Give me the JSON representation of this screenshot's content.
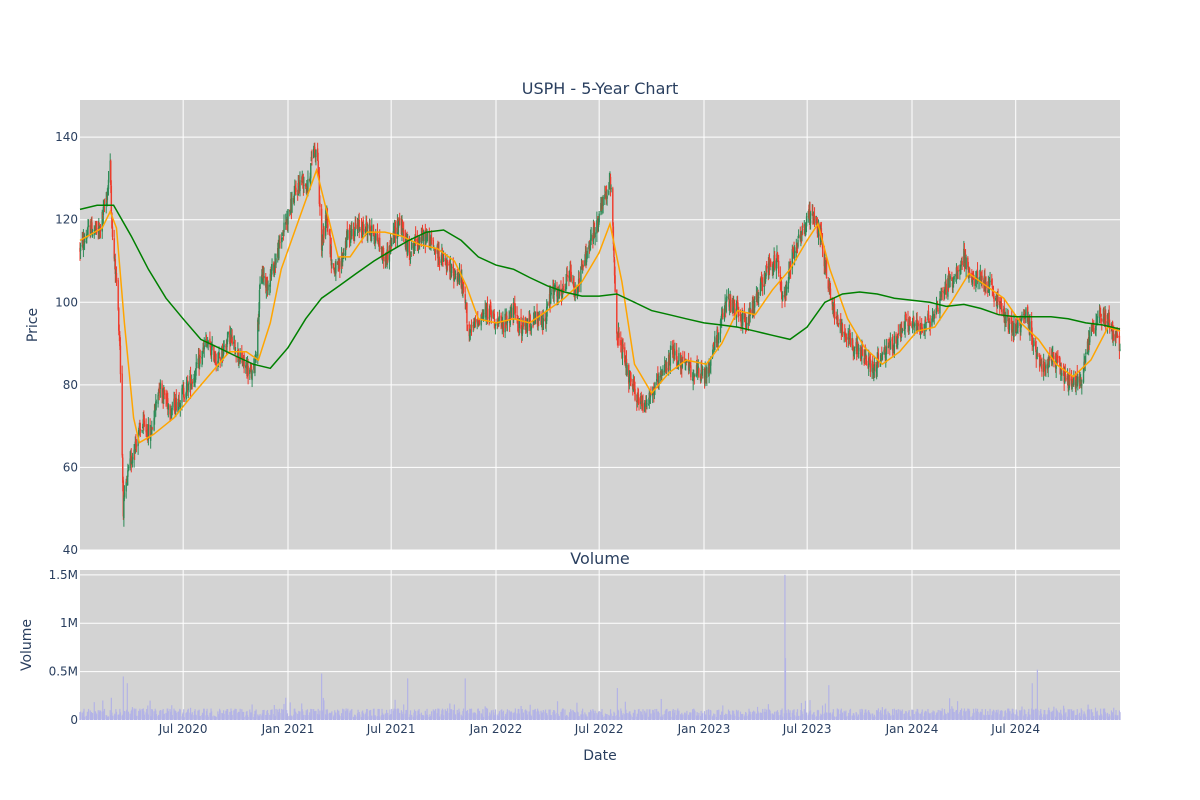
{
  "chart_data": {
    "type": "candlestick",
    "title": "USPH - 5-Year Chart",
    "price_panel": {
      "ylabel": "Price",
      "ylim": [
        40,
        149
      ],
      "y_ticks": [
        40,
        60,
        80,
        100,
        120,
        140
      ],
      "colors": {
        "up": "#2e8b57",
        "down": "#ef3b2c",
        "ma_short": "#ffa500",
        "ma_long": "#008000",
        "background": "#d3d3d3",
        "grid": "#ffffff"
      },
      "price_path": [
        [
          "2020-01-02",
          113
        ],
        [
          "2020-01-20",
          118
        ],
        [
          "2020-02-05",
          117
        ],
        [
          "2020-02-18",
          126
        ],
        [
          "2020-02-24",
          133
        ],
        [
          "2020-02-28",
          115
        ],
        [
          "2020-03-06",
          105
        ],
        [
          "2020-03-12",
          90
        ],
        [
          "2020-03-18",
          50
        ],
        [
          "2020-03-26",
          58
        ],
        [
          "2020-04-06",
          65
        ],
        [
          "2020-04-20",
          70
        ],
        [
          "2020-05-05",
          68
        ],
        [
          "2020-05-20",
          80
        ],
        [
          "2020-06-10",
          74
        ],
        [
          "2020-07-01",
          78
        ],
        [
          "2020-07-20",
          82
        ],
        [
          "2020-08-10",
          90
        ],
        [
          "2020-09-01",
          86
        ],
        [
          "2020-09-20",
          92
        ],
        [
          "2020-10-10",
          86
        ],
        [
          "2020-11-01",
          82
        ],
        [
          "2020-11-08",
          92
        ],
        [
          "2020-11-15",
          108
        ],
        [
          "2020-11-25",
          104
        ],
        [
          "2020-12-10",
          110
        ],
        [
          "2020-12-25",
          118
        ],
        [
          "2021-01-10",
          125
        ],
        [
          "2021-01-25",
          130
        ],
        [
          "2021-02-05",
          128
        ],
        [
          "2021-02-15",
          138
        ],
        [
          "2021-02-22",
          135
        ],
        [
          "2021-03-01",
          113
        ],
        [
          "2021-03-10",
          122
        ],
        [
          "2021-03-20",
          108
        ],
        [
          "2021-04-01",
          108
        ],
        [
          "2021-04-15",
          116
        ],
        [
          "2021-05-01",
          118
        ],
        [
          "2021-05-20",
          118
        ],
        [
          "2021-06-05",
          116
        ],
        [
          "2021-06-20",
          110
        ],
        [
          "2021-07-01",
          114
        ],
        [
          "2021-07-15",
          120
        ],
        [
          "2021-08-01",
          112
        ],
        [
          "2021-08-15",
          115
        ],
        [
          "2021-09-01",
          116
        ],
        [
          "2021-09-20",
          112
        ],
        [
          "2021-10-10",
          108
        ],
        [
          "2021-10-30",
          106
        ],
        [
          "2021-11-08",
          100
        ],
        [
          "2021-11-15",
          92
        ],
        [
          "2021-12-01",
          96
        ],
        [
          "2021-12-20",
          98
        ],
        [
          "2022-01-10",
          94
        ],
        [
          "2022-02-01",
          98
        ],
        [
          "2022-02-15",
          93
        ],
        [
          "2022-03-05",
          96
        ],
        [
          "2022-03-25",
          95
        ],
        [
          "2022-04-10",
          103
        ],
        [
          "2022-04-25",
          101
        ],
        [
          "2022-05-10",
          107
        ],
        [
          "2022-05-20",
          102
        ],
        [
          "2022-06-05",
          110
        ],
        [
          "2022-06-25",
          118
        ],
        [
          "2022-07-10",
          125
        ],
        [
          "2022-07-22",
          129
        ],
        [
          "2022-08-01",
          93
        ],
        [
          "2022-08-10",
          88
        ],
        [
          "2022-08-25",
          80
        ],
        [
          "2022-09-15",
          75
        ],
        [
          "2022-10-01",
          78
        ],
        [
          "2022-10-20",
          82
        ],
        [
          "2022-11-05",
          88
        ],
        [
          "2022-11-25",
          85
        ],
        [
          "2022-12-15",
          83
        ],
        [
          "2023-01-05",
          82
        ],
        [
          "2023-01-20",
          90
        ],
        [
          "2023-02-10",
          100
        ],
        [
          "2023-02-28",
          98
        ],
        [
          "2023-03-15",
          95
        ],
        [
          "2023-04-01",
          100
        ],
        [
          "2023-04-20",
          108
        ],
        [
          "2023-05-10",
          110
        ],
        [
          "2023-05-20",
          100
        ],
        [
          "2023-06-05",
          112
        ],
        [
          "2023-06-25",
          118
        ],
        [
          "2023-07-10",
          122
        ],
        [
          "2023-07-25",
          116
        ],
        [
          "2023-08-05",
          106
        ],
        [
          "2023-08-20",
          96
        ],
        [
          "2023-09-10",
          92
        ],
        [
          "2023-10-01",
          88
        ],
        [
          "2023-10-25",
          84
        ],
        [
          "2023-11-10",
          87
        ],
        [
          "2023-12-01",
          90
        ],
        [
          "2023-12-20",
          95
        ],
        [
          "2024-01-15",
          94
        ],
        [
          "2024-02-05",
          96
        ],
        [
          "2024-02-25",
          103
        ],
        [
          "2024-03-15",
          106
        ],
        [
          "2024-04-01",
          111
        ],
        [
          "2024-04-15",
          105
        ],
        [
          "2024-05-01",
          106
        ],
        [
          "2024-05-20",
          103
        ],
        [
          "2024-06-10",
          97
        ],
        [
          "2024-07-01",
          93
        ],
        [
          "2024-07-20",
          97
        ],
        [
          "2024-08-01",
          90
        ],
        [
          "2024-08-15",
          85
        ],
        [
          "2024-09-10",
          86
        ],
        [
          "2024-09-25",
          82
        ],
        [
          "2024-10-10",
          80
        ],
        [
          "2024-10-25",
          82
        ],
        [
          "2024-11-08",
          92
        ],
        [
          "2024-11-25",
          97
        ],
        [
          "2024-12-10",
          96
        ],
        [
          "2024-12-25",
          91
        ],
        [
          "2024-12-31",
          89
        ]
      ],
      "ma_short_path": [
        [
          "2020-01-02",
          115
        ],
        [
          "2020-02-10",
          118
        ],
        [
          "2020-02-24",
          122
        ],
        [
          "2020-03-06",
          118
        ],
        [
          "2020-03-20",
          95
        ],
        [
          "2020-04-05",
          72
        ],
        [
          "2020-04-15",
          66
        ],
        [
          "2020-05-10",
          68
        ],
        [
          "2020-06-15",
          72
        ],
        [
          "2020-07-20",
          78
        ],
        [
          "2020-08-20",
          83
        ],
        [
          "2020-09-20",
          88
        ],
        [
          "2020-10-20",
          88
        ],
        [
          "2020-11-10",
          86
        ],
        [
          "2020-12-01",
          95
        ],
        [
          "2020-12-20",
          108
        ],
        [
          "2021-01-20",
          120
        ],
        [
          "2021-02-20",
          132
        ],
        [
          "2021-03-10",
          122
        ],
        [
          "2021-03-30",
          111
        ],
        [
          "2021-04-20",
          111
        ],
        [
          "2021-05-20",
          117
        ],
        [
          "2021-06-20",
          117
        ],
        [
          "2021-07-20",
          116
        ],
        [
          "2021-08-20",
          114
        ],
        [
          "2021-09-20",
          113
        ],
        [
          "2021-10-20",
          110
        ],
        [
          "2021-11-10",
          104
        ],
        [
          "2021-12-01",
          96
        ],
        [
          "2022-01-01",
          95
        ],
        [
          "2022-02-01",
          96
        ],
        [
          "2022-03-01",
          95
        ],
        [
          "2022-04-01",
          98
        ],
        [
          "2022-05-01",
          101
        ],
        [
          "2022-06-01",
          105
        ],
        [
          "2022-07-01",
          112
        ],
        [
          "2022-07-20",
          119
        ],
        [
          "2022-08-10",
          105
        ],
        [
          "2022-09-01",
          85
        ],
        [
          "2022-10-01",
          78
        ],
        [
          "2022-11-01",
          83
        ],
        [
          "2022-12-01",
          86
        ],
        [
          "2023-01-05",
          85
        ],
        [
          "2023-02-01",
          90
        ],
        [
          "2023-03-01",
          98
        ],
        [
          "2023-04-01",
          97
        ],
        [
          "2023-05-01",
          103
        ],
        [
          "2023-06-01",
          108
        ],
        [
          "2023-07-01",
          115
        ],
        [
          "2023-07-20",
          119
        ],
        [
          "2023-08-10",
          108
        ],
        [
          "2023-09-10",
          96
        ],
        [
          "2023-10-10",
          89
        ],
        [
          "2023-11-10",
          85
        ],
        [
          "2023-12-10",
          88
        ],
        [
          "2024-01-10",
          93
        ],
        [
          "2024-02-10",
          94
        ],
        [
          "2024-03-10",
          100
        ],
        [
          "2024-04-10",
          107
        ],
        [
          "2024-05-10",
          104
        ],
        [
          "2024-06-10",
          101
        ],
        [
          "2024-07-10",
          95
        ],
        [
          "2024-08-10",
          91
        ],
        [
          "2024-09-10",
          85
        ],
        [
          "2024-10-10",
          82
        ],
        [
          "2024-11-10",
          86
        ],
        [
          "2024-12-10",
          94
        ],
        [
          "2024-12-31",
          93
        ]
      ],
      "ma_long_path": [
        [
          "2020-01-02",
          122.5
        ],
        [
          "2020-02-01",
          123.5
        ],
        [
          "2020-03-01",
          123.5
        ],
        [
          "2020-04-01",
          116
        ],
        [
          "2020-05-01",
          108
        ],
        [
          "2020-06-01",
          101
        ],
        [
          "2020-07-01",
          96
        ],
        [
          "2020-08-01",
          91
        ],
        [
          "2020-09-01",
          89
        ],
        [
          "2020-10-01",
          87
        ],
        [
          "2020-11-01",
          85
        ],
        [
          "2020-12-01",
          84
        ],
        [
          "2021-01-01",
          89
        ],
        [
          "2021-02-01",
          96
        ],
        [
          "2021-03-01",
          101
        ],
        [
          "2021-04-01",
          104
        ],
        [
          "2021-05-01",
          107
        ],
        [
          "2021-06-01",
          110
        ],
        [
          "2021-07-01",
          112.5
        ],
        [
          "2021-08-01",
          115
        ],
        [
          "2021-09-01",
          117
        ],
        [
          "2021-10-01",
          117.5
        ],
        [
          "2021-11-01",
          115
        ],
        [
          "2021-12-01",
          111
        ],
        [
          "2022-01-01",
          109
        ],
        [
          "2022-02-01",
          108
        ],
        [
          "2022-03-01",
          106
        ],
        [
          "2022-04-01",
          104
        ],
        [
          "2022-05-01",
          102.5
        ],
        [
          "2022-06-01",
          101.5
        ],
        [
          "2022-07-01",
          101.5
        ],
        [
          "2022-08-01",
          102
        ],
        [
          "2022-09-01",
          100
        ],
        [
          "2022-10-01",
          98
        ],
        [
          "2022-11-01",
          97
        ],
        [
          "2022-12-01",
          96
        ],
        [
          "2023-01-01",
          95
        ],
        [
          "2023-02-01",
          94.5
        ],
        [
          "2023-03-01",
          94
        ],
        [
          "2023-04-01",
          93
        ],
        [
          "2023-05-01",
          92
        ],
        [
          "2023-06-01",
          91
        ],
        [
          "2023-07-01",
          94
        ],
        [
          "2023-08-01",
          100
        ],
        [
          "2023-09-01",
          102
        ],
        [
          "2023-10-01",
          102.5
        ],
        [
          "2023-11-01",
          102
        ],
        [
          "2023-12-01",
          101
        ],
        [
          "2024-01-01",
          100.5
        ],
        [
          "2024-02-01",
          100
        ],
        [
          "2024-03-01",
          99
        ],
        [
          "2024-04-01",
          99.5
        ],
        [
          "2024-05-01",
          98.5
        ],
        [
          "2024-06-01",
          97
        ],
        [
          "2024-07-01",
          96.5
        ],
        [
          "2024-08-01",
          96.5
        ],
        [
          "2024-09-01",
          96.5
        ],
        [
          "2024-10-01",
          96
        ],
        [
          "2024-11-01",
          95
        ],
        [
          "2024-12-01",
          94.5
        ],
        [
          "2024-12-31",
          93.5
        ]
      ]
    },
    "volume_panel": {
      "title": "Volume",
      "ylabel": "Volume",
      "ylim": [
        0,
        1550000
      ],
      "y_ticks": [
        0,
        500000,
        1000000,
        1500000
      ],
      "y_tick_labels": [
        "0",
        "0.5M",
        "1M",
        "1.5M"
      ],
      "bar_color": "#b3b3e6",
      "spikes": [
        [
          "2020-03-18",
          450000
        ],
        [
          "2020-03-25",
          380000
        ],
        [
          "2020-02-26",
          230000
        ],
        [
          "2020-12-28",
          230000
        ],
        [
          "2021-03-01",
          480000
        ],
        [
          "2021-07-30",
          430000
        ],
        [
          "2021-11-08",
          430000
        ],
        [
          "2022-08-02",
          330000
        ],
        [
          "2023-05-23",
          1500000
        ],
        [
          "2023-05-24",
          640000
        ],
        [
          "2023-08-08",
          360000
        ],
        [
          "2024-07-30",
          380000
        ],
        [
          "2024-08-08",
          520000
        ]
      ]
    },
    "x_axis": {
      "xlabel": "Date",
      "range": [
        "2020-01-02",
        "2024-12-31"
      ],
      "ticks": [
        "2020-07-01",
        "2021-01-01",
        "2021-07-01",
        "2022-01-01",
        "2022-07-01",
        "2023-01-01",
        "2023-07-01",
        "2024-01-01",
        "2024-07-01"
      ],
      "tick_labels": [
        "Jul 2020",
        "Jan 2021",
        "Jul 2021",
        "Jan 2022",
        "Jul 2022",
        "Jan 2023",
        "Jul 2023",
        "Jan 2024",
        "Jul 2024"
      ],
      "grid": true
    }
  }
}
